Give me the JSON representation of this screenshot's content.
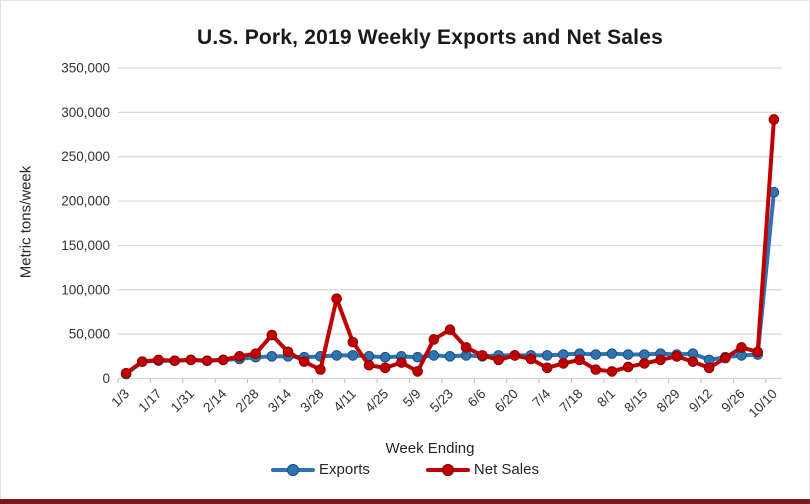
{
  "page": {
    "background": "#ffffff",
    "frame_border_color": "#e3e3e3",
    "bottom_bar_color": "#7b1a1a"
  },
  "chart_data": {
    "type": "line",
    "title": "U.S. Pork, 2019 Weekly Exports and Net Sales",
    "xlabel": "Week Ending",
    "ylabel": "Metric tons/week",
    "ylim": [
      0,
      350000
    ],
    "ytick_step": 50000,
    "y_tick_labels": [
      "0",
      "50,000",
      "100,000",
      "150,000",
      "200,000",
      "250,000",
      "300,000",
      "350,000"
    ],
    "grid": true,
    "gridline_color": "#d9d9d9",
    "tick_color": "#bfbfbf",
    "axis_text_color": "#333333",
    "legend_position": "bottom",
    "x_label_interval": 2,
    "x_tick_labels_shown": [
      "1/3",
      "1/17",
      "1/31",
      "2/14",
      "2/28",
      "3/14",
      "3/28",
      "4/11",
      "4/25",
      "5/9",
      "5/23",
      "6/6",
      "6/20",
      "7/4",
      "7/18",
      "8/1",
      "8/15",
      "8/29",
      "9/12",
      "9/26",
      "10/10"
    ],
    "categories": [
      "1/3",
      "1/10",
      "1/17",
      "1/24",
      "1/31",
      "2/7",
      "2/14",
      "2/21",
      "2/28",
      "3/7",
      "3/14",
      "3/21",
      "3/28",
      "4/4",
      "4/11",
      "4/18",
      "4/25",
      "5/2",
      "5/9",
      "5/16",
      "5/23",
      "5/30",
      "6/6",
      "6/13",
      "6/20",
      "6/27",
      "7/4",
      "7/11",
      "7/18",
      "7/25",
      "8/1",
      "8/8",
      "8/15",
      "8/22",
      "8/29",
      "9/5",
      "9/12",
      "9/19",
      "9/26",
      "10/3",
      "10/10"
    ],
    "series": [
      {
        "name": "Exports",
        "color": "#2e74b5",
        "marker_border": "#1f4e79",
        "values": [
          5000,
          19000,
          20000,
          20000,
          21000,
          20000,
          21000,
          22000,
          24000,
          25000,
          25000,
          24000,
          25000,
          26000,
          26000,
          25000,
          24000,
          25000,
          24000,
          26000,
          25000,
          26000,
          25000,
          26000,
          26000,
          26000,
          26000,
          27000,
          28000,
          27000,
          28000,
          27000,
          27000,
          28000,
          27000,
          28000,
          21000,
          24000,
          26000,
          27000,
          210000
        ]
      },
      {
        "name": "Net Sales",
        "color": "#c00000",
        "marker_border": "#8b0000",
        "values": [
          6000,
          19000,
          21000,
          20000,
          21000,
          20000,
          21000,
          25000,
          28000,
          49000,
          30000,
          19000,
          10000,
          90000,
          41000,
          15000,
          12000,
          18000,
          8000,
          44000,
          55000,
          35000,
          26000,
          21000,
          26000,
          22000,
          12000,
          17000,
          21000,
          10000,
          8000,
          13000,
          17000,
          21000,
          25000,
          19000,
          12000,
          23000,
          35000,
          30000,
          292000
        ]
      }
    ]
  }
}
